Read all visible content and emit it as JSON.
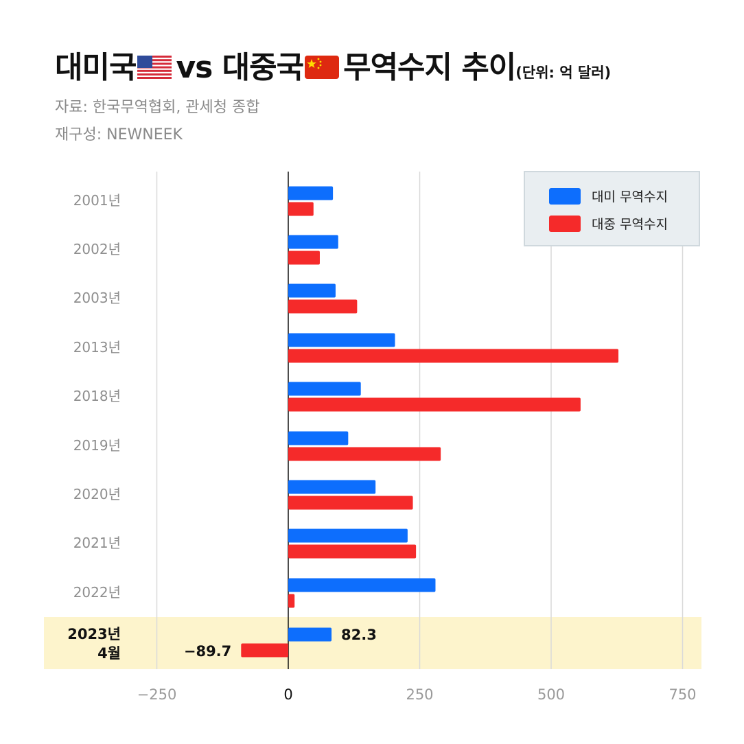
{
  "header": {
    "title_part1": "대미국",
    "title_part2": "vs 대중국",
    "title_part3": "무역수지 추이",
    "unit": "(단위: 억 달러)",
    "source": "자료: 한국무역협회, 관세청 종합",
    "credit": "재구성: NEWNEEK"
  },
  "colors": {
    "us": "#0d6efd",
    "cn": "#f52a2a",
    "highlight": "#fdf4cc",
    "grid": "#d9d9d9"
  },
  "chart_data": {
    "type": "bar",
    "orientation": "horizontal",
    "title": "대미국 vs 대중국 무역수지 추이",
    "unit": "억 달러",
    "categories": [
      "2001년",
      "2002년",
      "2003년",
      "2013년",
      "2018년",
      "2019년",
      "2020년",
      "2021년",
      "2022년",
      "2023년 4월"
    ],
    "series": [
      {
        "name": "대미 무역수지",
        "values": [
          85,
          95,
          90,
          203,
          138,
          114,
          166,
          227,
          280,
          82.3
        ]
      },
      {
        "name": "대중 무역수지",
        "values": [
          48,
          60,
          131,
          628,
          556,
          290,
          237,
          243,
          12,
          -89.7
        ]
      }
    ],
    "xlim": [
      -310,
      780
    ],
    "xticks": [
      -250,
      0,
      250,
      500,
      750
    ],
    "xtick_labels": [
      "−250",
      "0",
      "250",
      "500",
      "750"
    ],
    "data_labels": {
      "us_last": "82.3",
      "cn_last": "−89.7"
    },
    "highlight_category": "2023년 4월",
    "legend_position": "top-right"
  }
}
